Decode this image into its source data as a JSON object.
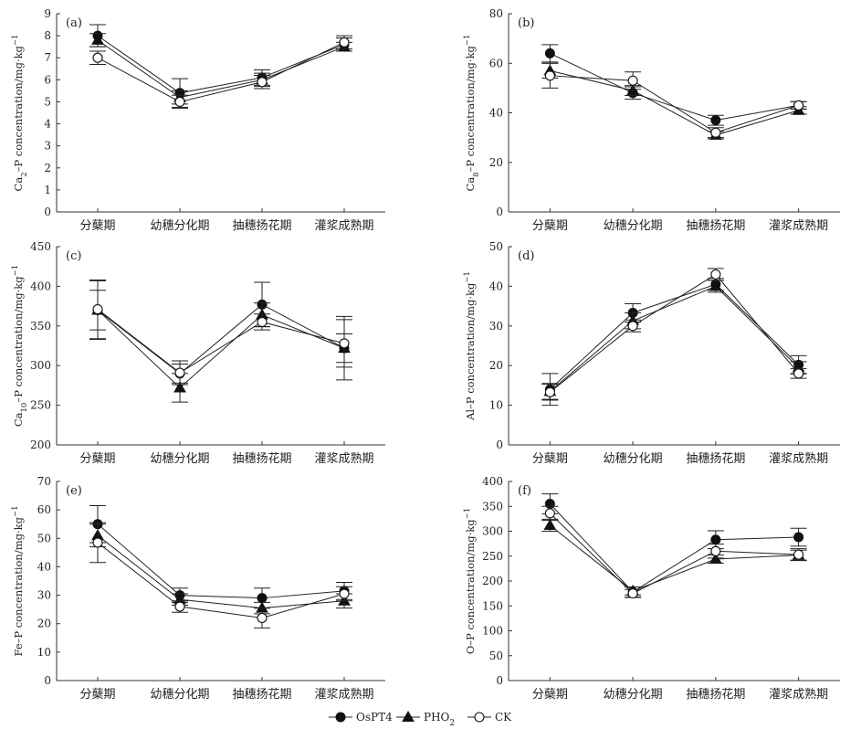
{
  "chart_data": [
    {
      "type": "line",
      "panel_label": "(a)",
      "ylabel_main": "Ca",
      "ylabel_sub": "2",
      "ylabel_rest": "–P concentration/mg·kg",
      "ylabel_sup": "−1",
      "ylim": [
        0,
        9
      ],
      "yticks": [
        0,
        1,
        2,
        3,
        4,
        5,
        6,
        7,
        8,
        9
      ],
      "categories": [
        "分蘖期",
        "幼穗分化期",
        "抽穗扬花期",
        "灌浆成熟期"
      ],
      "series": [
        {
          "name": "OsPT4",
          "values": [
            8.0,
            5.4,
            6.1,
            7.6
          ],
          "errors": [
            0.5,
            0.65,
            0.35,
            0.3
          ]
        },
        {
          "name": "PHO2",
          "values": [
            7.8,
            5.2,
            6.0,
            7.5
          ],
          "errors": [
            0.3,
            0.3,
            0.3,
            0.2
          ]
        },
        {
          "name": "CK",
          "values": [
            7.0,
            5.0,
            5.9,
            7.7
          ],
          "errors": [
            0.3,
            0.3,
            0.3,
            0.3
          ]
        }
      ]
    },
    {
      "type": "line",
      "panel_label": "(b)",
      "ylabel_main": "Ca",
      "ylabel_sub": "8",
      "ylabel_rest": "–P concentration/mg·kg",
      "ylabel_sup": "−1",
      "ylim": [
        0,
        80
      ],
      "yticks": [
        0,
        20,
        40,
        60,
        80
      ],
      "categories": [
        "分蘖期",
        "幼穗分化期",
        "抽穗扬花期",
        "灌浆成熟期"
      ],
      "series": [
        {
          "name": "OsPT4",
          "values": [
            64,
            48,
            37,
            43
          ],
          "errors": [
            3.5,
            2.5,
            2,
            1.5
          ]
        },
        {
          "name": "PHO2",
          "values": [
            57,
            49,
            31,
            41
          ],
          "errors": [
            3,
            2,
            1.5,
            1.5
          ]
        },
        {
          "name": "CK",
          "values": [
            55,
            53,
            32,
            43
          ],
          "errors": [
            5,
            3.5,
            2,
            1.5
          ]
        }
      ]
    },
    {
      "type": "line",
      "panel_label": "(c)",
      "ylabel_main": "Ca",
      "ylabel_sub": "10",
      "ylabel_rest": "–P concentration/mg·kg",
      "ylabel_sup": "−1",
      "ylim": [
        200,
        450
      ],
      "yticks": [
        200,
        250,
        300,
        350,
        400,
        450
      ],
      "categories": [
        "分蘖期",
        "幼穗分化期",
        "抽穗扬花期",
        "灌浆成熟期"
      ],
      "series": [
        {
          "name": "OsPT4",
          "values": [
            370,
            290,
            377,
            322
          ],
          "errors": [
            37,
            12,
            28,
            40
          ]
        },
        {
          "name": "PHO2",
          "values": [
            370,
            272,
            364,
            322
          ],
          "errors": [
            25,
            18,
            15,
            18
          ]
        },
        {
          "name": "CK",
          "values": [
            371,
            291,
            355,
            328
          ],
          "errors": [
            37,
            15,
            10,
            30
          ]
        }
      ]
    },
    {
      "type": "line",
      "panel_label": "(d)",
      "ylabel_main": "Al",
      "ylabel_sub": "",
      "ylabel_rest": "–P concentration/mg·kg",
      "ylabel_sup": "−1",
      "ylim": [
        0,
        50
      ],
      "yticks": [
        0,
        10,
        20,
        30,
        40,
        50
      ],
      "categories": [
        "分蘖期",
        "幼穗分化期",
        "抽穗扬花期",
        "灌浆成熟期"
      ],
      "series": [
        {
          "name": "OsPT4",
          "values": [
            14,
            33.3,
            40.5,
            20.2
          ],
          "errors": [
            4,
            2.3,
            1.5,
            2.3
          ]
        },
        {
          "name": "PHO2",
          "values": [
            13.5,
            31.3,
            40,
            19.5
          ],
          "errors": [
            2,
            2,
            1.5,
            1.5
          ]
        },
        {
          "name": "CK",
          "values": [
            13.3,
            30,
            43,
            18
          ],
          "errors": [
            2,
            1.5,
            1.5,
            1.2
          ]
        }
      ]
    },
    {
      "type": "line",
      "panel_label": "(e)",
      "ylabel_main": "Fe",
      "ylabel_sub": "",
      "ylabel_rest": "–P concentration/mg·kg",
      "ylabel_sup": "−1",
      "ylim": [
        0,
        70
      ],
      "yticks": [
        0,
        10,
        20,
        30,
        40,
        50,
        60,
        70
      ],
      "categories": [
        "分蘖期",
        "幼穗分化期",
        "抽穗扬花期",
        "灌浆成熟期"
      ],
      "series": [
        {
          "name": "OsPT4",
          "values": [
            55,
            30,
            29,
            31.5
          ],
          "errors": [
            6.5,
            2.5,
            3.5,
            3
          ]
        },
        {
          "name": "PHO2",
          "values": [
            51,
            28.5,
            25.5,
            28
          ],
          "errors": [
            4,
            2,
            2,
            2.5
          ]
        },
        {
          "name": "CK",
          "values": [
            48.5,
            26,
            22,
            30.5
          ],
          "errors": [
            7,
            2,
            3.5,
            2.5
          ]
        }
      ]
    },
    {
      "type": "line",
      "panel_label": "(f)",
      "ylabel_main": "O",
      "ylabel_sub": "",
      "ylabel_rest": "–P concentration/mg·kg",
      "ylabel_sup": "−1",
      "ylim": [
        0,
        400
      ],
      "yticks": [
        0,
        50,
        100,
        150,
        200,
        250,
        300,
        350,
        400
      ],
      "categories": [
        "分蘖期",
        "幼穗分化期",
        "抽穗扬花期",
        "灌浆成熟期"
      ],
      "series": [
        {
          "name": "OsPT4",
          "values": [
            355,
            178,
            283,
            288
          ],
          "errors": [
            20,
            10,
            18,
            18
          ]
        },
        {
          "name": "PHO2",
          "values": [
            312,
            180,
            244,
            252
          ],
          "errors": [
            12,
            8,
            8,
            10
          ]
        },
        {
          "name": "CK",
          "values": [
            336,
            175,
            260,
            253
          ],
          "errors": [
            14,
            8,
            14,
            12
          ]
        }
      ]
    }
  ],
  "legend": [
    {
      "name": "OsPT4",
      "marker": "filled-circle"
    },
    {
      "name": "PHO",
      "sub": "2",
      "marker": "filled-triangle"
    },
    {
      "name": "CK",
      "marker": "open-circle"
    }
  ]
}
